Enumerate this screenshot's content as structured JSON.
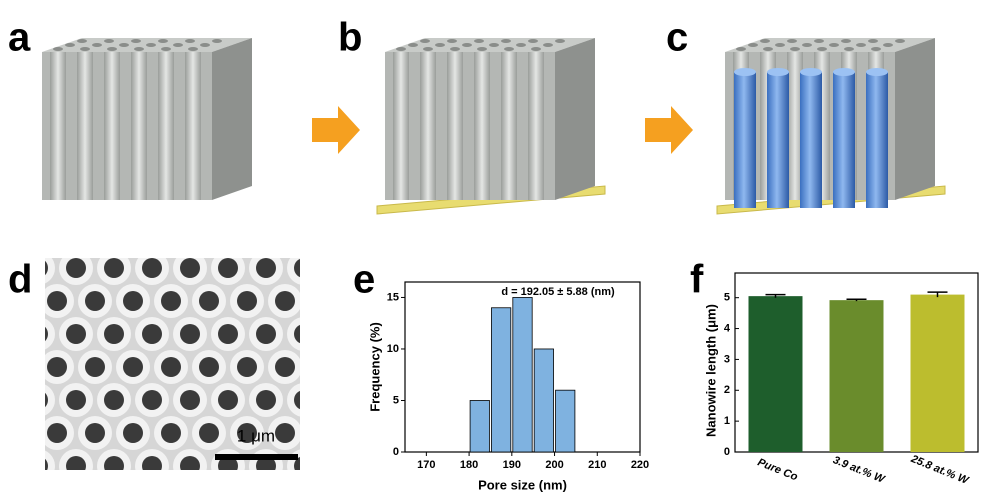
{
  "panels": {
    "labels": [
      "a",
      "b",
      "c",
      "d",
      "e",
      "f"
    ]
  },
  "scale_bar": "1 μm",
  "chart_data": [
    {
      "type": "histogram",
      "annotation": "d = 192.05 ± 5.88 (nm)",
      "x_label": "Pore size (nm)",
      "y_label": "Frequency (%)",
      "bins": [
        180,
        185,
        190,
        195,
        200,
        205
      ],
      "values": [
        5,
        14,
        15,
        10,
        6
      ],
      "color": "#7fb2e0",
      "xlim": [
        165,
        220
      ],
      "xticks": [
        170,
        180,
        190,
        200,
        210,
        220
      ],
      "ylim": [
        0,
        16.5
      ],
      "yticks": [
        0,
        5,
        10,
        15
      ]
    },
    {
      "type": "bar",
      "y_label": "Nanowire length (μm)",
      "categories": [
        "Pure Co",
        "3.9 at.% W",
        "25.8 at.% W"
      ],
      "values": [
        5.05,
        4.92,
        5.1
      ],
      "errors": [
        0.05,
        0.03,
        0.08
      ],
      "colors": [
        "#1e5e2c",
        "#6a8c2c",
        "#bcbd2e"
      ],
      "ylim": [
        0,
        5.8
      ],
      "yticks": [
        0,
        1,
        2,
        3,
        4,
        5
      ]
    }
  ]
}
